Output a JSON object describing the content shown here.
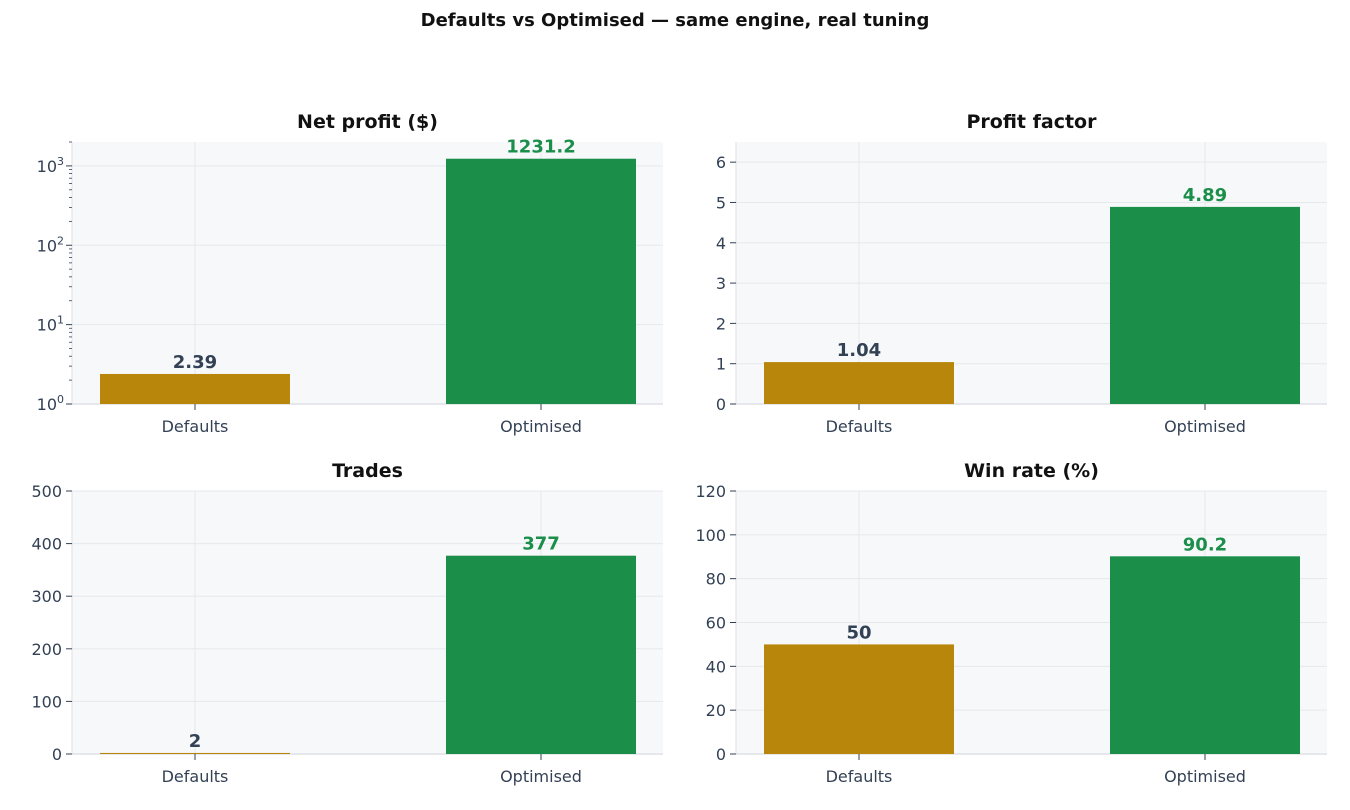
{
  "figure": {
    "title": "Defaults vs Optimised — same engine, real tuning"
  },
  "colors": {
    "defaults": "#b8860b",
    "optimised": "#1b8f4a",
    "defaults_label": "#334155",
    "optimised_label": "#1b8f4a",
    "panel_background": "#f6f8fa",
    "grid": "#e5e8ed",
    "tick_text": "#334155",
    "title_text": "#111111"
  },
  "chart_data": [
    {
      "type": "bar",
      "title": "Net profit ($)",
      "categories": [
        "Defaults",
        "Optimised"
      ],
      "values": [
        2.39,
        1231.2
      ],
      "value_labels": [
        "2.39",
        "1231.2"
      ],
      "yscale": "log",
      "ylim": [
        1,
        2000
      ],
      "yticks": [
        1,
        10,
        100,
        1000
      ],
      "ytick_labels": [
        [
          "10",
          "0"
        ],
        [
          "10",
          "1"
        ],
        [
          "10",
          "2"
        ],
        [
          "10",
          "3"
        ]
      ],
      "grid": true
    },
    {
      "type": "bar",
      "title": "Profit factor",
      "categories": [
        "Defaults",
        "Optimised"
      ],
      "values": [
        1.04,
        4.89
      ],
      "value_labels": [
        "1.04",
        "4.89"
      ],
      "yscale": "linear",
      "ylim": [
        0,
        6.5
      ],
      "yticks": [
        0,
        1,
        2,
        3,
        4,
        5,
        6
      ],
      "ytick_labels": [
        "0",
        "1",
        "2",
        "3",
        "4",
        "5",
        "6"
      ],
      "grid": true
    },
    {
      "type": "bar",
      "title": "Trades",
      "categories": [
        "Defaults",
        "Optimised"
      ],
      "values": [
        2,
        377
      ],
      "value_labels": [
        "2",
        "377"
      ],
      "yscale": "linear",
      "ylim": [
        0,
        500
      ],
      "yticks": [
        0,
        100,
        200,
        300,
        400,
        500
      ],
      "ytick_labels": [
        "0",
        "100",
        "200",
        "300",
        "400",
        "500"
      ],
      "grid": true
    },
    {
      "type": "bar",
      "title": "Win rate (%)",
      "categories": [
        "Defaults",
        "Optimised"
      ],
      "values": [
        50,
        90.2
      ],
      "value_labels": [
        "50",
        "90.2"
      ],
      "yscale": "linear",
      "ylim": [
        0,
        120
      ],
      "yticks": [
        0,
        20,
        40,
        60,
        80,
        100,
        120
      ],
      "ytick_labels": [
        "0",
        "20",
        "40",
        "60",
        "80",
        "100",
        "120"
      ],
      "grid": true
    }
  ]
}
